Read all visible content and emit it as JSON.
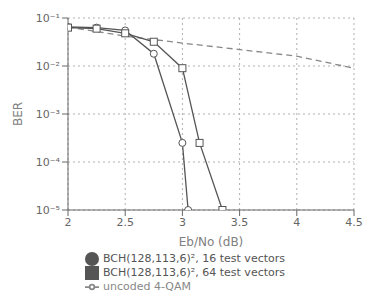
{
  "chart_data": {
    "type": "line",
    "title": "",
    "xlabel": "Eb/No (dB)",
    "ylabel": "BER",
    "log": "y",
    "grid": true,
    "legend": "bottom",
    "xlim": [
      2,
      4.5
    ],
    "xticks": [
      2,
      2.5,
      3,
      3.5,
      4,
      4.5
    ],
    "ylim": [
      1e-05,
      0.1
    ],
    "yticks": [
      {
        "value": 1e-05,
        "label": "10⁻⁵"
      },
      {
        "value": 0.0001,
        "label": "10⁻⁴"
      },
      {
        "value": 0.001,
        "label": "10⁻³"
      },
      {
        "value": 0.01,
        "label": "10⁻²"
      },
      {
        "value": 0.1,
        "label": "10⁻¹"
      }
    ],
    "series": [
      {
        "name": "uncoded 4-QAM",
        "color": "#888888",
        "line_style": "dashed",
        "x": [
          2.0,
          2.5,
          3.0,
          3.5,
          4.0,
          4.5
        ],
        "values": [
          0.065,
          0.042,
          0.03,
          0.022,
          0.016,
          0.009
        ]
      },
      {
        "name": "BCH(128,113,6)², 16 test vectors",
        "color": "#555555",
        "line_style": "solid",
        "marker": "circle",
        "x": [
          2.0,
          2.25,
          2.5,
          2.75,
          3.0,
          3.05
        ],
        "values": [
          0.065,
          0.063,
          0.055,
          0.018,
          0.00025,
          1e-05
        ]
      },
      {
        "name": "BCH(128,113,6)², 64 test vectors",
        "color": "#555555",
        "line_style": "solid",
        "marker": "square",
        "x": [
          2.0,
          2.25,
          2.5,
          2.75,
          3.0,
          3.15,
          3.35
        ],
        "values": [
          0.063,
          0.06,
          0.048,
          0.032,
          0.009,
          0.00025,
          1e-05
        ]
      }
    ]
  }
}
